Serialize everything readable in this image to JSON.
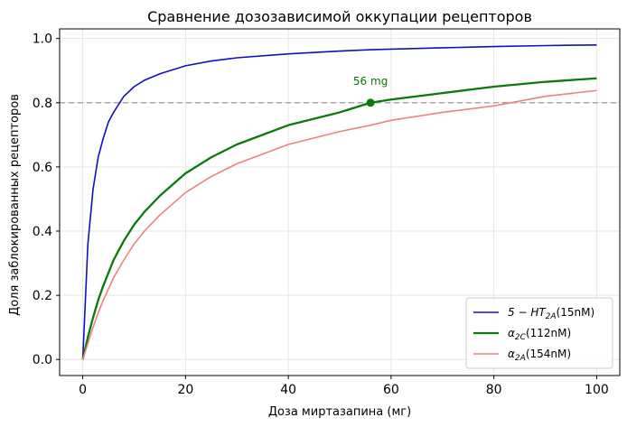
{
  "chart_data": {
    "type": "line",
    "title": "Сравнение дозозависимой оккупации рецепторов",
    "xlabel": "Доза миртазапина (мг)",
    "ylabel": "Доля заблокированных рецепторов",
    "xlim": [
      -4.5,
      104.5
    ],
    "ylim": [
      -0.05,
      1.03
    ],
    "x_ticks": [
      0,
      20,
      40,
      60,
      80,
      100
    ],
    "x_tick_labels": [
      "0",
      "20",
      "40",
      "60",
      "80",
      "100"
    ],
    "y_ticks": [
      0.0,
      0.2,
      0.4,
      0.6,
      0.8,
      1.0
    ],
    "y_tick_labels": [
      "0.0",
      "0.2",
      "0.4",
      "0.6",
      "0.8",
      "1.0"
    ],
    "grid": true,
    "legend_position": "bottom-right",
    "x": [
      0,
      1,
      2,
      3,
      4,
      5,
      6,
      8,
      10,
      12,
      15,
      20,
      25,
      30,
      40,
      50,
      56,
      60,
      70,
      80,
      90,
      100
    ],
    "series": [
      {
        "name": "5 − HT_{2A}(15nM)",
        "label_main": "5 − HT",
        "label_sub": "2A",
        "label_tail": "(15nM)",
        "color": "#1010c0",
        "values": [
          0.0,
          0.36,
          0.53,
          0.63,
          0.69,
          0.74,
          0.77,
          0.82,
          0.85,
          0.87,
          0.89,
          0.915,
          0.93,
          0.94,
          0.952,
          0.961,
          0.965,
          0.967,
          0.971,
          0.975,
          0.978,
          0.98
        ]
      },
      {
        "name": "α_{2C}(112nM)",
        "label_main": "α",
        "label_sub": "2C",
        "label_tail": "(112nM)",
        "color": "#0a7a0a",
        "values": [
          0.0,
          0.07,
          0.13,
          0.185,
          0.23,
          0.27,
          0.31,
          0.37,
          0.42,
          0.46,
          0.51,
          0.58,
          0.63,
          0.67,
          0.73,
          0.77,
          0.8,
          0.81,
          0.83,
          0.85,
          0.865,
          0.876
        ]
      },
      {
        "name": "α_{2A}(154nM)",
        "label_main": "α",
        "label_sub": "2A",
        "label_tail": "(154nM)",
        "color": "#f08080",
        "values": [
          0.0,
          0.05,
          0.1,
          0.145,
          0.185,
          0.22,
          0.255,
          0.31,
          0.36,
          0.4,
          0.45,
          0.52,
          0.57,
          0.61,
          0.67,
          0.71,
          0.73,
          0.745,
          0.77,
          0.79,
          0.82,
          0.838
        ]
      }
    ],
    "reference_line": {
      "y": 0.8,
      "color": "#aaaaaa",
      "style": "dashed"
    },
    "annotations": [
      {
        "text": "56 mg",
        "x": 56,
        "y": 0.8,
        "color": "#0a7a0a"
      }
    ]
  }
}
